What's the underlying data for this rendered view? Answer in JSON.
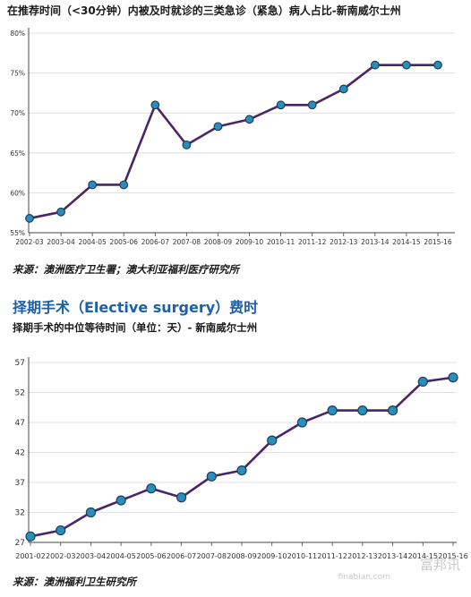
{
  "chart1_title": "在推荐时间（<30分钟）内被及时就诊的三类急诊（紧急）病人占比-新南威尔士州",
  "source1": "来源：澳洲医疗卫生署；澳大利亚福利医疗研究所",
  "heading2": "择期手术（Elective surgery）费时",
  "subtitle2": "择期手术的中位等待时间（单位：天）- 新南威尔士州",
  "source2": "来源：澳洲福利卫生研究所",
  "watermark": {
    "main": "富邦讯",
    "sub": "finabian.com"
  },
  "colors": {
    "line": "#4b2666",
    "marker_fill": "#2a8fb8",
    "marker_stroke": "#1c3f66",
    "axis": "#444444",
    "grid": "#d8d8d8",
    "heading_blue": "#1d5fa8"
  },
  "chart_data": [
    {
      "type": "line",
      "categories": [
        "2002-03",
        "2003-04",
        "2004-05",
        "2005-06",
        "2006-07",
        "2007-08",
        "2008-09",
        "2009-10",
        "2010-11",
        "2011-12",
        "2012-13",
        "2013-14",
        "2014-15",
        "2015-16"
      ],
      "values": [
        56.8,
        57.6,
        61,
        61,
        71,
        66,
        68.3,
        69.2,
        71,
        71,
        73,
        76,
        76,
        76
      ],
      "y_ticks": [
        "55%",
        "60%",
        "65%",
        "70%",
        "75%",
        "80%"
      ],
      "ylim": [
        55,
        80
      ],
      "grid": true
    },
    {
      "type": "line",
      "categories": [
        "2001-02",
        "2002-03",
        "2003-04",
        "2004-05",
        "2005-06",
        "2006-07",
        "2007-08",
        "2008-09",
        "2009-10",
        "2010-11",
        "2011-12",
        "2012-13",
        "2013-14",
        "2014-15",
        "2015-16"
      ],
      "values": [
        28,
        29,
        32,
        34,
        36,
        34.5,
        38,
        39,
        44,
        47,
        49,
        49,
        49,
        53.8,
        54.5
      ],
      "y_ticks": [
        "27",
        "32",
        "37",
        "42",
        "47",
        "52",
        "57"
      ],
      "ylim": [
        27,
        57
      ],
      "grid": true
    }
  ]
}
